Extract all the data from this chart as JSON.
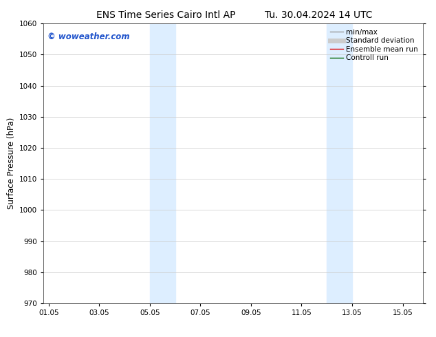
{
  "title_left": "ENS Time Series Cairo Intl AP",
  "title_right": "Tu. 30.04.2024 14 UTC",
  "ylabel": "Surface Pressure (hPa)",
  "ylim": [
    970,
    1060
  ],
  "yticks": [
    970,
    980,
    990,
    1000,
    1010,
    1020,
    1030,
    1040,
    1050,
    1060
  ],
  "background_color": "#ffffff",
  "plot_bg_color": "#ffffff",
  "shaded_bands": [
    {
      "x_start": 4.0,
      "x_end": 5.0,
      "color": "#ddeeff"
    },
    {
      "x_start": 11.0,
      "x_end": 12.0,
      "color": "#ddeeff"
    }
  ],
  "xtick_labels": [
    "01.05",
    "03.05",
    "05.05",
    "07.05",
    "09.05",
    "11.05",
    "13.05",
    "15.05"
  ],
  "xtick_positions": [
    0,
    2,
    4,
    6,
    8,
    10,
    12,
    14
  ],
  "xlim": [
    -0.2,
    14.8
  ],
  "watermark_text": "© woweather.com",
  "watermark_color": "#2255cc",
  "legend_entries": [
    {
      "label": "min/max",
      "color": "#999999",
      "linewidth": 1.0
    },
    {
      "label": "Standard deviation",
      "color": "#cccccc",
      "linewidth": 5
    },
    {
      "label": "Ensemble mean run",
      "color": "#dd0000",
      "linewidth": 1.0
    },
    {
      "label": "Controll run",
      "color": "#006600",
      "linewidth": 1.0
    }
  ],
  "title_fontsize": 10,
  "tick_fontsize": 7.5,
  "ylabel_fontsize": 8.5,
  "watermark_fontsize": 8.5,
  "legend_fontsize": 7.5
}
